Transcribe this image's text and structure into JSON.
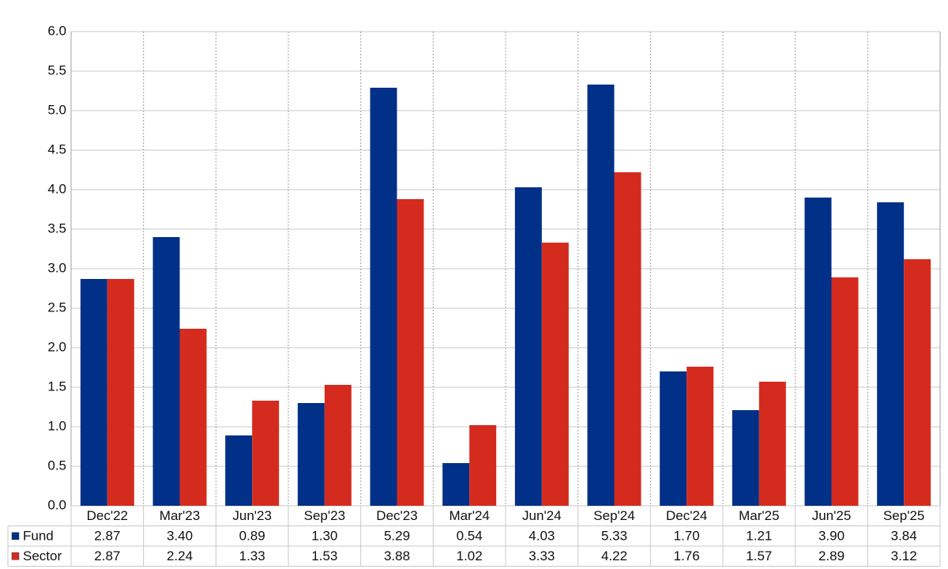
{
  "chart_data": {
    "type": "bar",
    "categories": [
      "Dec'22",
      "Mar'23",
      "Jun'23",
      "Sep'23",
      "Dec'23",
      "Mar'24",
      "Jun'24",
      "Sep'24",
      "Dec'24",
      "Mar'25",
      "Jun'25",
      "Sep'25"
    ],
    "series": [
      {
        "name": "Fund",
        "color": "#003087",
        "values": [
          2.87,
          3.4,
          0.89,
          1.3,
          5.29,
          0.54,
          4.03,
          5.33,
          1.7,
          1.21,
          3.9,
          3.84
        ],
        "value_labels": [
          "2.87",
          "3.40",
          "0.89",
          "1.30",
          "5.29",
          "0.54",
          "4.03",
          "5.33",
          "1.70",
          "1.21",
          "3.90",
          "3.84"
        ]
      },
      {
        "name": "Sector",
        "color": "#d52b1e",
        "values": [
          2.87,
          2.24,
          1.33,
          1.53,
          3.88,
          1.02,
          3.33,
          4.22,
          1.76,
          1.57,
          2.89,
          3.12
        ],
        "value_labels": [
          "2.87",
          "2.24",
          "1.33",
          "1.53",
          "3.88",
          "1.02",
          "3.33",
          "4.22",
          "1.76",
          "1.57",
          "2.89",
          "3.12"
        ]
      }
    ],
    "ylim": [
      0,
      6
    ],
    "yticks": [
      {
        "value": 0,
        "label": "0.0"
      },
      0.5,
      {
        "value": 1,
        "label": "1.0"
      },
      1.5,
      {
        "value": 2,
        "label": "2.0"
      },
      2.5,
      {
        "value": 3,
        "label": "3.0"
      },
      3.5,
      {
        "value": 4,
        "label": "4.0"
      },
      4.5,
      {
        "value": 5,
        "label": "5.0"
      },
      5.5,
      {
        "value": 6,
        "label": "6.0"
      }
    ],
    "grid": true
  }
}
